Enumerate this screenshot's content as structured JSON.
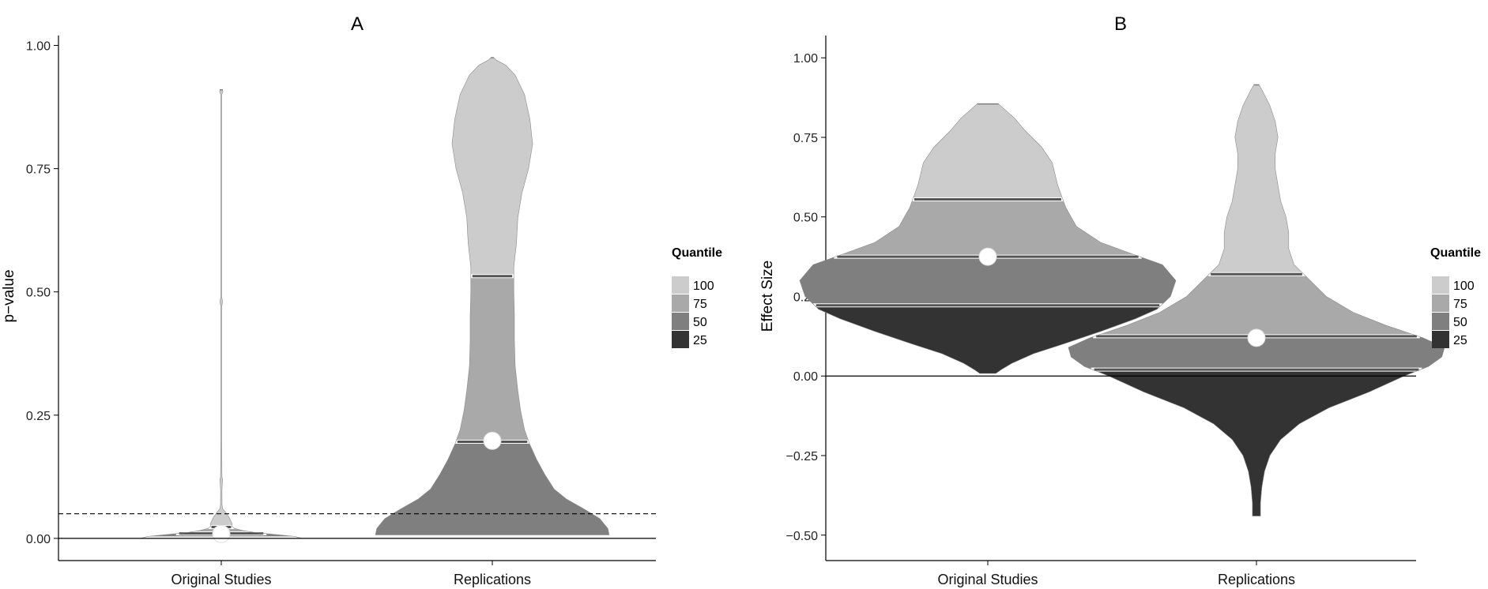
{
  "quantile_colors": {
    "100": "#cccccc",
    "75": "#a9a9a9",
    "50": "#7f7f7f",
    "25": "#333333"
  },
  "chart_data": [
    {
      "type": "violin",
      "title": "A",
      "ylabel": "p−value",
      "xlabel": "",
      "ylim": [
        -0.045,
        1.02
      ],
      "yticks": [
        0.0,
        0.25,
        0.5,
        0.75,
        1.0
      ],
      "ytick_labels": [
        "0.00",
        "0.25",
        "0.50",
        "0.75",
        "1.00"
      ],
      "categories": [
        "Original Studies",
        "Replications"
      ],
      "reference_lines": [
        {
          "y": 0.0,
          "style": "solid"
        },
        {
          "y": 0.05,
          "style": "dashed"
        }
      ],
      "legend": {
        "title": "Quantile",
        "entries": [
          "100",
          "75",
          "50",
          "25"
        ],
        "placement": "right"
      },
      "violins": [
        {
          "category": "Original Studies",
          "profile": [
            [
              0.0,
              0.6
            ],
            [
              0.004,
              0.55
            ],
            [
              0.008,
              0.4
            ],
            [
              0.012,
              0.25
            ],
            [
              0.016,
              0.16
            ],
            [
              0.02,
              0.1
            ],
            [
              0.024,
              0.08
            ],
            [
              0.03,
              0.08
            ],
            [
              0.036,
              0.07
            ],
            [
              0.042,
              0.06
            ],
            [
              0.048,
              0.045
            ],
            [
              0.054,
              0.03
            ],
            [
              0.06,
              0.01
            ],
            [
              0.07,
              0.005
            ],
            [
              0.1,
              0.005
            ],
            [
              0.12,
              0.01
            ],
            [
              0.125,
              0.005
            ],
            [
              0.2,
              0.003
            ],
            [
              0.47,
              0.003
            ],
            [
              0.48,
              0.01
            ],
            [
              0.49,
              0.003
            ],
            [
              0.9,
              0.003
            ],
            [
              0.905,
              0.012
            ],
            [
              0.91,
              0.01
            ]
          ],
          "quartiles": [
            0.004,
            0.01,
            0.023,
            0.91
          ],
          "median_line": 0.023,
          "mean": 0.009
        },
        {
          "category": "Replications",
          "profile": [
            [
              0.007,
              0.87
            ],
            [
              0.02,
              0.86
            ],
            [
              0.04,
              0.8
            ],
            [
              0.06,
              0.68
            ],
            [
              0.08,
              0.55
            ],
            [
              0.1,
              0.46
            ],
            [
              0.13,
              0.39
            ],
            [
              0.16,
              0.33
            ],
            [
              0.19,
              0.28
            ],
            [
              0.22,
              0.24
            ],
            [
              0.26,
              0.21
            ],
            [
              0.3,
              0.19
            ],
            [
              0.35,
              0.17
            ],
            [
              0.4,
              0.165
            ],
            [
              0.45,
              0.165
            ],
            [
              0.5,
              0.16
            ],
            [
              0.55,
              0.16
            ],
            [
              0.6,
              0.18
            ],
            [
              0.65,
              0.19
            ],
            [
              0.7,
              0.22
            ],
            [
              0.75,
              0.27
            ],
            [
              0.8,
              0.3
            ],
            [
              0.85,
              0.28
            ],
            [
              0.9,
              0.24
            ],
            [
              0.94,
              0.17
            ],
            [
              0.96,
              0.1
            ],
            [
              0.97,
              0.03
            ],
            [
              0.975,
              0.01
            ]
          ],
          "quartiles": [
            0.007,
            0.196,
            0.532,
            0.975
          ],
          "median_line": 0.196,
          "mean": 0.198
        }
      ]
    },
    {
      "type": "violin",
      "title": "B",
      "ylabel": "Effect Size",
      "xlabel": "",
      "ylim": [
        -0.58,
        1.07
      ],
      "yticks": [
        -0.5,
        -0.25,
        0.0,
        0.25,
        0.5,
        0.75,
        1.0
      ],
      "ytick_labels": [
        "−0.50",
        "−0.25",
        "0.00",
        "0.25",
        "0.50",
        "0.75",
        "1.00"
      ],
      "categories": [
        "Original Studies",
        "Replications"
      ],
      "reference_lines": [
        {
          "y": 0.0,
          "style": "solid"
        }
      ],
      "legend": {
        "title": "Quantile",
        "entries": [
          "100",
          "75",
          "50",
          "25"
        ],
        "placement": "right"
      },
      "violins": [
        {
          "category": "Original Studies",
          "profile": [
            [
              0.008,
              0.03
            ],
            [
              0.02,
              0.05
            ],
            [
              0.04,
              0.09
            ],
            [
              0.07,
              0.17
            ],
            [
              0.1,
              0.28
            ],
            [
              0.14,
              0.42
            ],
            [
              0.18,
              0.55
            ],
            [
              0.21,
              0.63
            ],
            [
              0.25,
              0.68
            ],
            [
              0.3,
              0.7
            ],
            [
              0.35,
              0.65
            ],
            [
              0.38,
              0.55
            ],
            [
              0.42,
              0.42
            ],
            [
              0.47,
              0.33
            ],
            [
              0.53,
              0.29
            ],
            [
              0.6,
              0.26
            ],
            [
              0.67,
              0.24
            ],
            [
              0.72,
              0.2
            ],
            [
              0.77,
              0.14
            ],
            [
              0.81,
              0.1
            ],
            [
              0.84,
              0.06
            ],
            [
              0.855,
              0.04
            ]
          ],
          "quartiles": [
            0.008,
            0.222,
            0.375,
            0.555,
            0.855
          ],
          "mean": 0.375
        },
        {
          "category": "Replications",
          "profile": [
            [
              -0.44,
              0.015
            ],
            [
              -0.4,
              0.015
            ],
            [
              -0.35,
              0.02
            ],
            [
              -0.3,
              0.03
            ],
            [
              -0.25,
              0.05
            ],
            [
              -0.2,
              0.09
            ],
            [
              -0.15,
              0.16
            ],
            [
              -0.1,
              0.27
            ],
            [
              -0.05,
              0.42
            ],
            [
              0.0,
              0.55
            ],
            [
              0.03,
              0.64
            ],
            [
              0.06,
              0.69
            ],
            [
              0.09,
              0.7
            ],
            [
              0.12,
              0.62
            ],
            [
              0.16,
              0.48
            ],
            [
              0.2,
              0.36
            ],
            [
              0.25,
              0.26
            ],
            [
              0.3,
              0.2
            ],
            [
              0.35,
              0.14
            ],
            [
              0.4,
              0.12
            ],
            [
              0.45,
              0.12
            ],
            [
              0.5,
              0.11
            ],
            [
              0.55,
              0.09
            ],
            [
              0.6,
              0.08
            ],
            [
              0.65,
              0.07
            ],
            [
              0.7,
              0.07
            ],
            [
              0.75,
              0.08
            ],
            [
              0.8,
              0.07
            ],
            [
              0.85,
              0.05
            ],
            [
              0.9,
              0.02
            ],
            [
              0.915,
              0.01
            ]
          ],
          "quartiles": [
            -0.44,
            0.02,
            0.125,
            0.32,
            0.915
          ],
          "mean": 0.12
        }
      ]
    }
  ]
}
